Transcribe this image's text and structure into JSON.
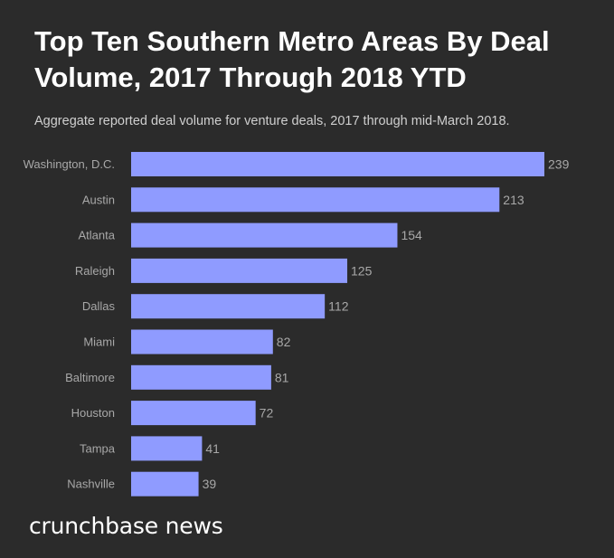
{
  "chart_data": {
    "type": "bar",
    "orientation": "horizontal",
    "title": "Top Ten Southern Metro Areas By Deal Volume, 2017 Through 2018 YTD",
    "subtitle": "Aggregate reported deal volume for venture deals, 2017 through mid-March 2018.",
    "categories": [
      "Washington, D.C.",
      "Austin",
      "Atlanta",
      "Raleigh",
      "Dallas",
      "Miami",
      "Baltimore",
      "Houston",
      "Tampa",
      "Nashville"
    ],
    "values": [
      239,
      213,
      154,
      125,
      112,
      82,
      81,
      72,
      41,
      39
    ],
    "xlim": [
      0,
      239
    ],
    "xlabel": "",
    "ylabel": "",
    "grid": false,
    "legend": "none"
  },
  "branding": {
    "logo_text": "crunchbase news"
  },
  "colors": {
    "background": "#2b2b2b",
    "bar": "#8f9bff",
    "title": "#ffffff",
    "subtitle": "#cfcfcf",
    "category_label": "#a8a8a8",
    "value_label": "#a8a8a8"
  }
}
